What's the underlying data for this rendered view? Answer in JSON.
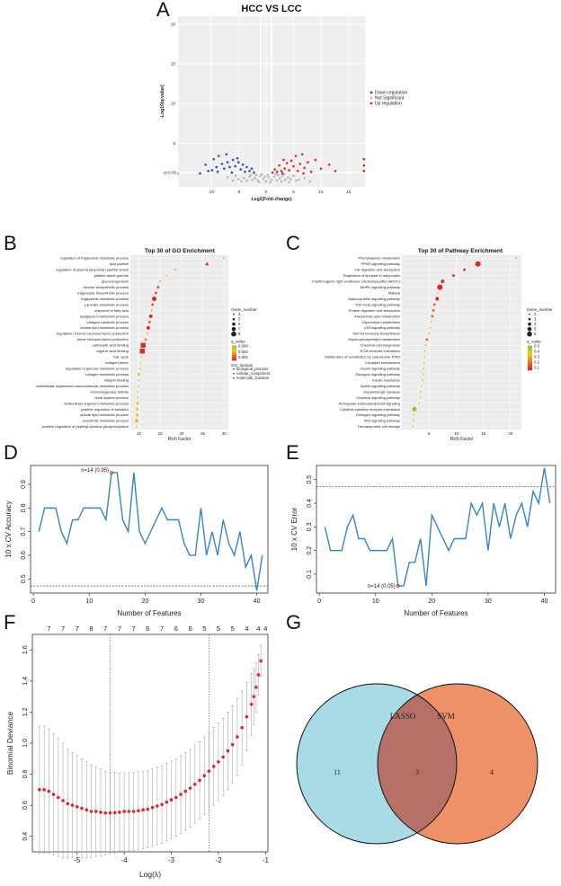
{
  "colors": {
    "down": "#2b4fbf",
    "up": "#e0262a",
    "notsig": "#b8b8b8",
    "cv_line": "#3a84c4",
    "dev_points": "#e0262a",
    "lasso_fill": "#a9dbe6",
    "svm_fill": "#ee9068",
    "overlap_fill": "#b57068"
  },
  "panels": {
    "A": "A",
    "B": "B",
    "C": "C",
    "D": "D",
    "E": "E",
    "F": "F",
    "G": "G"
  },
  "chart_data": [
    {
      "id": "A",
      "type": "scatter",
      "title": "HCC VS LCC",
      "xlabel": "Log2(Fold-change)",
      "ylabel": "-Log10(q-value)",
      "xticks": [
        "-10",
        "-5",
        "0",
        "5",
        "10",
        "15"
      ],
      "xtick_values": [
        -10,
        -5,
        0,
        5,
        10,
        15
      ],
      "yticks": [
        "5",
        "10",
        "15",
        "20"
      ],
      "ytick_values": [
        5,
        10,
        15,
        20
      ],
      "threshold_label": "q=0.05",
      "xlim": [
        -16,
        18
      ],
      "ylim": [
        -0.5,
        21
      ],
      "legend": [
        "Down regulation",
        "Not Significant",
        "Up regulation"
      ],
      "legend_position": "right",
      "down_points": [
        [
          -12,
          1.2
        ],
        [
          -11,
          2.3
        ],
        [
          -10.5,
          1.5
        ],
        [
          -9.5,
          3.0
        ],
        [
          -9,
          2.0
        ],
        [
          -8.6,
          3.4
        ],
        [
          -8,
          2.4
        ],
        [
          -7.6,
          1.8
        ],
        [
          -7,
          2.6
        ],
        [
          -6.6,
          2.0
        ],
        [
          -6,
          2.9
        ],
        [
          -5.6,
          2.1
        ],
        [
          -5,
          2.6
        ],
        [
          -4.6,
          1.7
        ],
        [
          -4.2,
          2.3
        ],
        [
          -3.8,
          1.4
        ],
        [
          -3.5,
          2.0
        ],
        [
          -3,
          1.5
        ],
        [
          -2.6,
          1.8
        ],
        [
          -2.2,
          1.3
        ],
        [
          -8.8,
          1.4
        ],
        [
          -6.2,
          1.3
        ],
        [
          -5.2,
          3.1
        ],
        [
          -9.8,
          1.6
        ],
        [
          -7.2,
          3.6
        ]
      ],
      "up_points": [
        [
          1.2,
          1.3
        ],
        [
          1.6,
          1.7
        ],
        [
          2.0,
          1.4
        ],
        [
          2.4,
          2.2
        ],
        [
          2.8,
          1.5
        ],
        [
          3.2,
          2.9
        ],
        [
          3.4,
          1.8
        ],
        [
          3.8,
          2.5
        ],
        [
          4.2,
          1.6
        ],
        [
          4.6,
          2.8
        ],
        [
          5.0,
          2.1
        ],
        [
          5.4,
          3.4
        ],
        [
          5.8,
          1.5
        ],
        [
          6.2,
          2.4
        ],
        [
          6.6,
          3.6
        ],
        [
          7.0,
          1.9
        ],
        [
          7.6,
          2.6
        ],
        [
          8.2,
          1.4
        ],
        [
          9.0,
          2.9
        ],
        [
          10,
          1.8
        ],
        [
          11.5,
          2.3
        ],
        [
          12.6,
          1.5
        ],
        [
          17.8,
          3.0
        ],
        [
          17.8,
          2.2
        ],
        [
          17.8,
          1.5
        ],
        [
          6.8,
          1.2
        ],
        [
          3.0,
          1.2
        ]
      ],
      "notsig_points": [
        [
          -2,
          0.6
        ],
        [
          -1.5,
          0.3
        ],
        [
          -1,
          0.9
        ],
        [
          -0.5,
          0.5
        ],
        [
          0,
          0.2
        ],
        [
          0.5,
          0.7
        ],
        [
          1,
          0.4
        ],
        [
          1.5,
          0.8
        ],
        [
          2,
          0.3
        ],
        [
          2.5,
          0.6
        ],
        [
          3,
          0.9
        ],
        [
          3.5,
          0.4
        ],
        [
          4,
          0.7
        ],
        [
          -2.5,
          0.4
        ],
        [
          -3,
          0.8
        ],
        [
          -3.5,
          0.3
        ],
        [
          -4,
          0.6
        ],
        [
          -1.8,
          1.0
        ],
        [
          -0.8,
          1.1
        ],
        [
          0.3,
          1.0
        ],
        [
          1.8,
          1.1
        ],
        [
          2.8,
          0.2
        ],
        [
          4.5,
          0.5
        ],
        [
          5,
          0.9
        ],
        [
          -4.5,
          0.2
        ],
        [
          -0.2,
          0.8
        ],
        [
          0.8,
          0.1
        ],
        [
          3.3,
          1.1
        ],
        [
          -1.2,
          0.1
        ],
        [
          -2.8,
          1.0
        ],
        [
          6,
          0.4
        ],
        [
          7,
          0.6
        ],
        [
          5.5,
          0.3
        ],
        [
          -5,
          0.5
        ],
        [
          -5.5,
          0.9
        ],
        [
          -6,
          0.3
        ],
        [
          8,
          0.2
        ],
        [
          -7,
          0.7
        ],
        [
          4.2,
          0.1
        ],
        [
          2.2,
          1.0
        ],
        [
          -16,
          1.2
        ]
      ]
    },
    {
      "id": "B",
      "type": "scatter",
      "title": "Top 30 of GO Enrichment",
      "xlabel": "Rich Factor",
      "xticks": [
        "10",
        "15",
        "20",
        "25",
        "30"
      ],
      "xtick_values": [
        10,
        15,
        20,
        25,
        30
      ],
      "xlim": [
        8,
        31
      ],
      "legend_size_title": "Gene_number",
      "legend_size_labels": [
        "4",
        "5",
        "6",
        "7",
        "8"
      ],
      "legend_color_title": "q_value",
      "legend_color_labels": [
        "0.006",
        "0.004",
        "0.002"
      ],
      "legend_shape_title": "GO_domain",
      "legend_shape_labels": [
        "biological_process",
        "cellular_component",
        "molecular_function"
      ],
      "terms": [
        "regulation of triglyceride metabolic process",
        "lipid particle",
        "regulation of plasma lipoprotein particle levels",
        "platelet alpha granule",
        "gluconeogenesis",
        "hexose biosynthetic process",
        "triglyceride biosynthetic process",
        "triglyceride metabolic process",
        "pyruvate metabolic process",
        "response to fatty acid",
        "acylglycerol metabolic process",
        "collagen catabolic process",
        "neutral lipid metabolic process",
        "regulation of tumor necrosis factor production",
        "tumor necrosis factor production",
        "carboxylic acid binding",
        "organic acid binding",
        "hair cycle",
        "collagen trimer",
        "regulation of glucose metabolic process",
        "collagen metabolic process",
        "integrin binding",
        "multicellular organismal macromolecule metabolic process",
        "monooxygenase activity",
        "renal system process",
        "multicellular organism metabolic process",
        "positive regulation of behavior",
        "cellular lipid metabolic process",
        "xenobiotic metabolic process",
        "positive regulation of peptidyl-tyrosine phosphorylation"
      ],
      "rich": [
        30,
        26,
        18.5,
        16.5,
        15,
        14.5,
        14,
        13.6,
        13.2,
        13,
        12.8,
        12.5,
        12.2,
        12,
        11.6,
        11,
        10.8,
        10.6,
        10.4,
        10.3,
        10,
        10,
        9.9,
        9.8,
        9.8,
        9.7,
        9.6,
        9.6,
        9.5,
        9.5
      ],
      "gene_number": [
        4,
        6,
        4,
        4,
        4,
        5,
        5,
        7,
        5,
        4,
        6,
        5,
        6,
        4,
        5,
        8,
        8,
        4,
        4,
        4,
        5,
        4,
        4,
        4,
        4,
        5,
        5,
        5,
        6,
        4
      ],
      "q_value": [
        0.006,
        0.001,
        0.003,
        0.003,
        0.003,
        0.002,
        0.002,
        0.001,
        0.002,
        0.003,
        0.001,
        0.002,
        0.001,
        0.003,
        0.003,
        0.001,
        0.001,
        0.004,
        0.004,
        0.005,
        0.004,
        0.005,
        0.005,
        0.005,
        0.006,
        0.004,
        0.004,
        0.004,
        0.004,
        0.005
      ],
      "domain": [
        "bp",
        "cc",
        "bp",
        "cc",
        "bp",
        "bp",
        "bp",
        "bp",
        "bp",
        "bp",
        "bp",
        "bp",
        "bp",
        "bp",
        "bp",
        "mf",
        "mf",
        "bp",
        "cc",
        "bp",
        "bp",
        "mf",
        "bp",
        "mf",
        "bp",
        "bp",
        "bp",
        "bp",
        "bp",
        "bp"
      ]
    },
    {
      "id": "C",
      "type": "scatter",
      "title": "Top 30 of Pathway Enrichment",
      "xlabel": "Rich Factor",
      "xticks": [
        "5",
        "10",
        "15",
        "20"
      ],
      "xtick_values": [
        5,
        10,
        15,
        20
      ],
      "xlim": [
        0,
        22
      ],
      "legend_size_title": "Gene_number",
      "legend_size_labels": [
        "2",
        "3",
        "4",
        "5",
        "6"
      ],
      "legend_color_title": "q_value",
      "legend_color_labels": [
        "0.5",
        "0.4",
        "0.3",
        "0.2",
        "0.1"
      ],
      "terms": [
        "Phenylalanine metabolism",
        "PPAR signaling pathway",
        "Fat digestion and absorption",
        "Regulation of lipolysis in adipocytes",
        "rrhythmogenic right ventricular cardiomyopathy (ARVC)",
        "AMPK signaling pathway",
        "Malaria",
        "Adipocytokine signaling pathway",
        "TGF-beta signaling pathway",
        "Protein digestion and absorption",
        "Arachidonic acid metabolism",
        "Glycerolipid metabolism",
        "p53 signaling pathway",
        "Steroid hormone biosynthesis",
        "Glycerophospholipid metabolism",
        "Chemical carcinogenesis",
        "ECM-receptor interaction",
        "Metabolism of xenobiotics by cytochrome P450",
        "Circadian entrainment",
        "Insulin signaling pathway",
        "Glucagon signaling pathway",
        "Insulin resistance",
        "Apelin signaling pathway",
        "Dopaminergic synapse",
        "Oxytocin signaling pathway",
        "Retrograde endocannabinoid signaling",
        "Cytokine-cytokine receptor interaction",
        "Estrogen signaling pathway",
        "Wnt signaling pathway",
        "Hematopoietic cell lineage"
      ],
      "rich": [
        21,
        14,
        11.5,
        9.5,
        7.5,
        7,
        6.6,
        6.5,
        6,
        5.8,
        5.6,
        5.4,
        5.2,
        5,
        4.6,
        4.4,
        4.2,
        4.2,
        4.1,
        4.0,
        3.9,
        3.8,
        3.6,
        3.5,
        3.4,
        3.2,
        2.3,
        2.2,
        2.1,
        2.0
      ],
      "gene_number": [
        2,
        6,
        3,
        3,
        4,
        6,
        2,
        4,
        3,
        3,
        3,
        2,
        2,
        2,
        3,
        2,
        2,
        2,
        2,
        2,
        2,
        2,
        2,
        2,
        2,
        2,
        5,
        2,
        2,
        2
      ],
      "q_value": [
        0.5,
        0.1,
        0.1,
        0.1,
        0.1,
        0.1,
        0.3,
        0.1,
        0.2,
        0.2,
        0.2,
        0.3,
        0.3,
        0.3,
        0.2,
        0.3,
        0.4,
        0.4,
        0.4,
        0.4,
        0.4,
        0.4,
        0.4,
        0.4,
        0.4,
        0.4,
        0.5,
        0.4,
        0.4,
        0.4
      ]
    },
    {
      "id": "D",
      "type": "line",
      "xlabel": "Number of Features",
      "ylabel": "10 x CV Accuracy",
      "xticks": [
        "0",
        "10",
        "20",
        "30",
        "40"
      ],
      "xtick_values": [
        0,
        10,
        20,
        30,
        40
      ],
      "yticks": [
        "0.5",
        "0.6",
        "0.7",
        "0.8",
        "0.9"
      ],
      "ytick_values": [
        0.5,
        0.6,
        0.7,
        0.8,
        0.9
      ],
      "xlim": [
        -0.5,
        42
      ],
      "ylim": [
        0.44,
        0.98
      ],
      "annotation": "n=14 (0.95)",
      "annotation_point": [
        14,
        0.95
      ],
      "reference_line": 0.47,
      "x": [
        1,
        2,
        3,
        4,
        5,
        6,
        7,
        8,
        9,
        10,
        11,
        12,
        13,
        14,
        15,
        16,
        17,
        18,
        19,
        20,
        21,
        22,
        23,
        24,
        25,
        26,
        27,
        28,
        29,
        30,
        31,
        32,
        33,
        34,
        35,
        36,
        37,
        38,
        39,
        40,
        41
      ],
      "y": [
        0.7,
        0.8,
        0.8,
        0.8,
        0.7,
        0.65,
        0.75,
        0.75,
        0.8,
        0.8,
        0.8,
        0.8,
        0.75,
        0.95,
        0.95,
        0.75,
        0.7,
        0.95,
        0.7,
        0.65,
        0.7,
        0.75,
        0.8,
        0.75,
        0.75,
        0.75,
        0.65,
        0.6,
        0.6,
        0.8,
        0.6,
        0.7,
        0.6,
        0.75,
        0.65,
        0.6,
        0.7,
        0.55,
        0.6,
        0.45,
        0.6
      ]
    },
    {
      "id": "E",
      "type": "line",
      "xlabel": "Number of Features",
      "ylabel": "10 x CV Error",
      "xticks": [
        "0",
        "10",
        "20",
        "30",
        "40"
      ],
      "xtick_values": [
        0,
        10,
        20,
        30,
        40
      ],
      "yticks": [
        "0.1",
        "0.2",
        "0.3",
        "0.4",
        "0.5"
      ],
      "ytick_values": [
        0.1,
        0.2,
        0.3,
        0.4,
        0.5
      ],
      "xlim": [
        -0.5,
        42
      ],
      "ylim": [
        0.02,
        0.56
      ],
      "annotation": "n=14 (0.05)",
      "annotation_point": [
        14,
        0.05
      ],
      "reference_line": 0.47,
      "x": [
        1,
        2,
        3,
        4,
        5,
        6,
        7,
        8,
        9,
        10,
        11,
        12,
        13,
        14,
        15,
        16,
        17,
        18,
        19,
        20,
        21,
        22,
        23,
        24,
        25,
        26,
        27,
        28,
        29,
        30,
        31,
        32,
        33,
        34,
        35,
        36,
        37,
        38,
        39,
        40,
        41
      ],
      "y": [
        0.3,
        0.2,
        0.2,
        0.2,
        0.3,
        0.35,
        0.25,
        0.25,
        0.2,
        0.2,
        0.2,
        0.2,
        0.25,
        0.05,
        0.05,
        0.15,
        0.15,
        0.25,
        0.05,
        0.35,
        0.3,
        0.25,
        0.2,
        0.25,
        0.25,
        0.25,
        0.4,
        0.35,
        0.4,
        0.2,
        0.4,
        0.3,
        0.4,
        0.25,
        0.35,
        0.4,
        0.3,
        0.45,
        0.4,
        0.55,
        0.4
      ]
    },
    {
      "id": "F",
      "type": "scatter",
      "xlabel": "Log(λ)",
      "ylabel": "Binomial Deviance",
      "xticks": [
        "-5",
        "-4",
        "-3",
        "-2",
        "-1"
      ],
      "xtick_values": [
        -5,
        -4,
        -3,
        -2,
        -1
      ],
      "yticks": [
        "0.4",
        "0.6",
        "0.8",
        "1.0",
        "1.2",
        "1.4",
        "1.6"
      ],
      "ytick_values": [
        0.4,
        0.6,
        0.8,
        1.0,
        1.2,
        1.4,
        1.6
      ],
      "xlim": [
        -5.95,
        -0.95
      ],
      "ylim": [
        0.3,
        1.7
      ],
      "top_labels": [
        "7",
        "7",
        "7",
        "8",
        "7",
        "7",
        "7",
        "6",
        "7",
        "6",
        "6",
        "5",
        "5",
        "5",
        "4",
        "4",
        "4"
      ],
      "top_label_x": [
        -5.6,
        -5.3,
        -5.0,
        -4.7,
        -4.4,
        -4.1,
        -3.8,
        -3.5,
        -3.2,
        -2.9,
        -2.6,
        -2.3,
        -2.0,
        -1.7,
        -1.4,
        -1.15,
        -1.0
      ],
      "vlines": [
        -4.3,
        -2.2
      ],
      "points_x": [
        -5.8,
        -5.7,
        -5.6,
        -5.5,
        -5.4,
        -5.3,
        -5.2,
        -5.1,
        -5.0,
        -4.9,
        -4.8,
        -4.7,
        -4.6,
        -4.5,
        -4.4,
        -4.3,
        -4.2,
        -4.1,
        -4.0,
        -3.9,
        -3.8,
        -3.7,
        -3.6,
        -3.5,
        -3.4,
        -3.3,
        -3.2,
        -3.1,
        -3.0,
        -2.9,
        -2.8,
        -2.7,
        -2.6,
        -2.5,
        -2.4,
        -2.3,
        -2.2,
        -2.1,
        -2.0,
        -1.9,
        -1.8,
        -1.7,
        -1.6,
        -1.5,
        -1.4,
        -1.3,
        -1.25,
        -1.2,
        -1.15,
        -1.1
      ],
      "points_y": [
        0.7,
        0.7,
        0.69,
        0.67,
        0.65,
        0.63,
        0.61,
        0.6,
        0.59,
        0.58,
        0.57,
        0.56,
        0.56,
        0.555,
        0.55,
        0.55,
        0.552,
        0.555,
        0.56,
        0.56,
        0.56,
        0.565,
        0.57,
        0.575,
        0.585,
        0.595,
        0.605,
        0.62,
        0.635,
        0.65,
        0.67,
        0.69,
        0.71,
        0.735,
        0.76,
        0.79,
        0.82,
        0.85,
        0.88,
        0.91,
        0.95,
        0.99,
        1.04,
        1.1,
        1.17,
        1.25,
        1.3,
        1.36,
        1.44,
        1.53
      ],
      "err": [
        0.41,
        0.41,
        0.4,
        0.39,
        0.38,
        0.37,
        0.35,
        0.34,
        0.33,
        0.32,
        0.31,
        0.3,
        0.29,
        0.28,
        0.27,
        0.26,
        0.26,
        0.25,
        0.25,
        0.25,
        0.25,
        0.25,
        0.25,
        0.25,
        0.25,
        0.25,
        0.25,
        0.25,
        0.25,
        0.25,
        0.25,
        0.25,
        0.25,
        0.25,
        0.25,
        0.25,
        0.25,
        0.25,
        0.25,
        0.25,
        0.25,
        0.25,
        0.25,
        0.24,
        0.22,
        0.2,
        0.18,
        0.16,
        0.13,
        0.1
      ]
    },
    {
      "id": "G",
      "type": "venn",
      "sets": [
        "LASSO",
        "SVM"
      ],
      "counts": {
        "only_lasso": "11",
        "both": "3",
        "only_svm": "4"
      }
    }
  ]
}
